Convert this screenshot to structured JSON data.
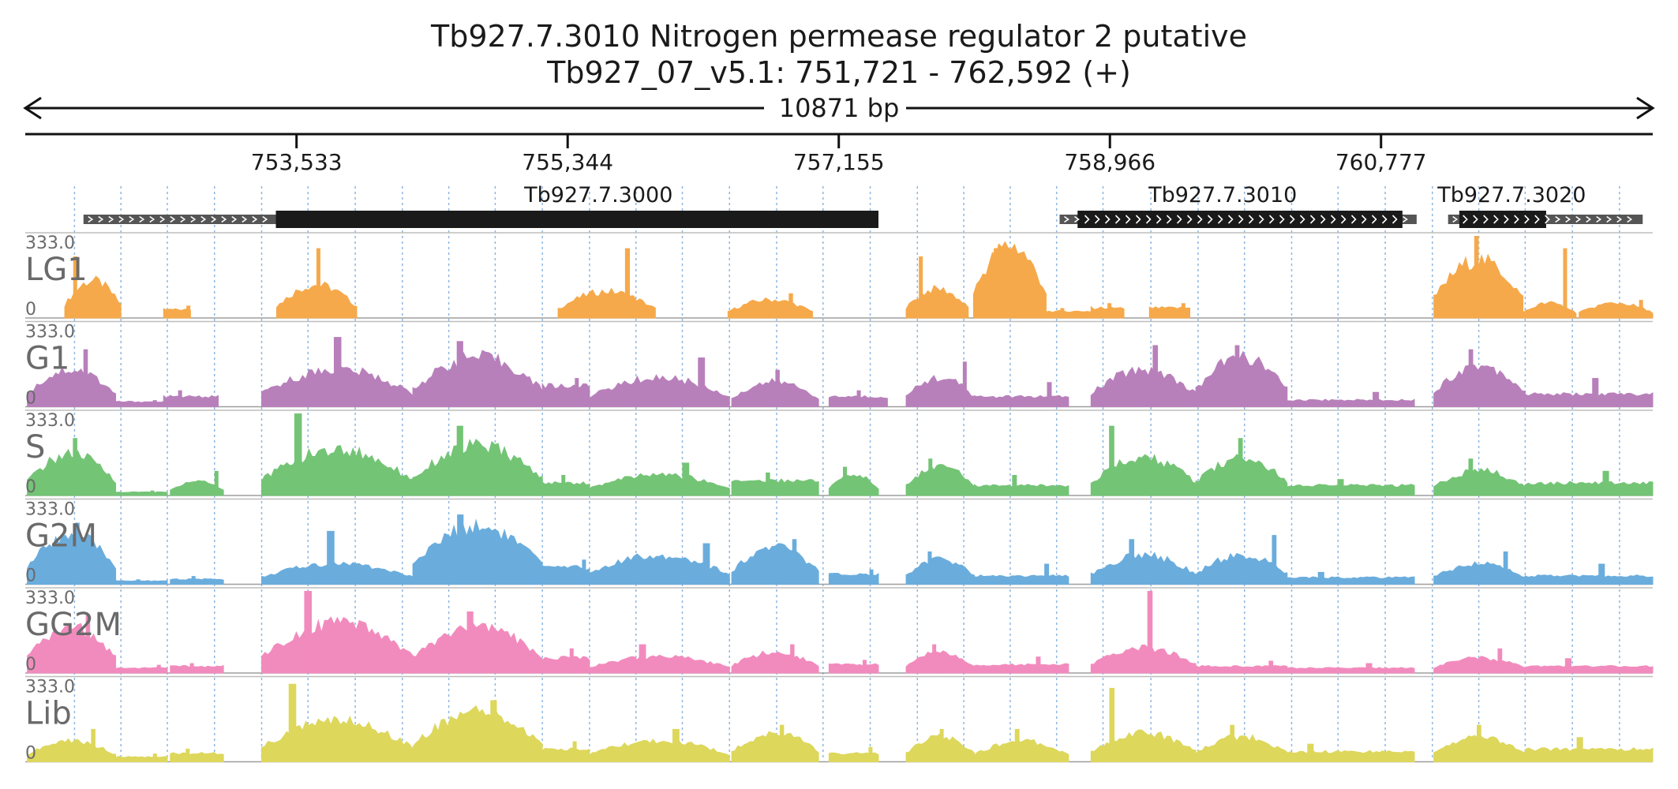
{
  "title": {
    "line1": "Tb927.7.3010  Nitrogen permease regulator 2  putative",
    "line2": "Tb927_07_v5.1: 751,721 - 762,592 (+)"
  },
  "span_label": "10871 bp",
  "chart_data": {
    "type": "area",
    "x_range": [
      751721,
      762592
    ],
    "x_ticks": [
      {
        "pos": 753533,
        "label": "753,533"
      },
      {
        "pos": 755344,
        "label": "755,344"
      },
      {
        "pos": 757155,
        "label": "757,155"
      },
      {
        "pos": 758966,
        "label": "758,966"
      },
      {
        "pos": 760777,
        "label": "760,777"
      }
    ],
    "grid_positions": [
      752050,
      752360,
      752670,
      752985,
      753300,
      753610,
      753925,
      754240,
      754550,
      754860,
      755175,
      755490,
      755800,
      756110,
      756425,
      756740,
      757050,
      757365,
      757680,
      757990,
      758300,
      758610,
      758920,
      759240,
      759555,
      759865,
      760180,
      760490,
      760805,
      761120,
      761430,
      761740,
      762055,
      762370
    ],
    "genes": [
      {
        "name": "Tb927.7.3000",
        "utr": [
          752110,
          753395
        ],
        "cds": [
          753395,
          757420
        ],
        "label_pos": 755550
      },
      {
        "name": "Tb927.7.3010",
        "utr": [
          758630,
          761015
        ],
        "cds": [
          758750,
          760920
        ],
        "label_pos": 759720
      },
      {
        "name": "Tb927.7.3020",
        "utr": [
          761225,
          762525
        ],
        "cds": [
          761300,
          761880
        ],
        "label_pos": 761650
      }
    ],
    "y_range": [
      0,
      333.0
    ],
    "tracks": [
      {
        "name": "LG1",
        "max_label": "333.0",
        "min_label": "0",
        "color": "#f6a94a",
        "regions": [
          [
            751985,
            752360,
            "hump",
            0.45,
            0.75
          ],
          [
            752645,
            752825,
            "flat",
            0.1,
            0.15
          ],
          [
            753400,
            753935,
            "hump",
            0.4,
            0.85
          ],
          [
            755280,
            755930,
            "hump",
            0.32,
            0.85
          ],
          [
            756415,
            756980,
            "hump",
            0.22,
            0.3
          ],
          [
            757605,
            758020,
            "hump",
            0.35,
            0.75
          ],
          [
            758055,
            758540,
            "hump",
            0.88,
            0.85
          ],
          [
            758540,
            758920,
            "flat",
            0.08,
            0.12
          ],
          [
            758840,
            759060,
            "flat",
            0.12,
            0.18
          ],
          [
            759230,
            759500,
            "flat",
            0.12,
            0.18
          ],
          [
            761130,
            761725,
            "hump",
            0.7,
            1.0
          ],
          [
            761725,
            762080,
            "hump",
            0.18,
            0.85
          ],
          [
            762100,
            762592,
            "hump",
            0.18,
            0.22
          ]
        ]
      },
      {
        "name": "G1",
        "max_label": "333.0",
        "min_label": "0",
        "color": "#b880bb",
        "regions": [
          [
            751735,
            752325,
            "hump",
            0.45,
            0.7
          ],
          [
            752325,
            752670,
            "flat",
            0.06,
            0.08
          ],
          [
            752645,
            753010,
            "flat",
            0.12,
            0.2
          ],
          [
            753300,
            754310,
            "hump",
            0.45,
            0.85
          ],
          [
            754310,
            755175,
            "hump",
            0.6,
            0.8
          ],
          [
            755175,
            755490,
            "flat",
            0.25,
            0.35
          ],
          [
            755490,
            756425,
            "hump",
            0.35,
            0.6
          ],
          [
            756440,
            757020,
            "hump",
            0.3,
            0.45
          ],
          [
            757090,
            757480,
            "flat",
            0.12,
            0.2
          ],
          [
            757605,
            758060,
            "hump",
            0.35,
            0.55
          ],
          [
            758060,
            758690,
            "flat",
            0.12,
            0.3
          ],
          [
            758840,
            759540,
            "hump",
            0.45,
            0.75
          ],
          [
            759540,
            760150,
            "hump",
            0.6,
            0.75
          ],
          [
            760150,
            761000,
            "flat",
            0.08,
            0.18
          ],
          [
            761130,
            761740,
            "hump",
            0.5,
            0.7
          ],
          [
            761740,
            762592,
            "flat",
            0.15,
            0.35
          ]
        ]
      },
      {
        "name": "S",
        "max_label": "333.0",
        "min_label": "0",
        "color": "#74c476",
        "regions": [
          [
            751735,
            752325,
            "hump",
            0.5,
            0.7
          ],
          [
            752325,
            752670,
            "flat",
            0.04,
            0.06
          ],
          [
            752690,
            753045,
            "hump",
            0.18,
            0.3
          ],
          [
            753300,
            754310,
            "hump",
            0.55,
            1.0
          ],
          [
            754310,
            755175,
            "hump",
            0.6,
            0.85
          ],
          [
            755175,
            755490,
            "flat",
            0.15,
            0.25
          ],
          [
            755490,
            756425,
            "hump",
            0.25,
            0.4
          ],
          [
            756440,
            757020,
            "flat",
            0.18,
            0.28
          ],
          [
            757090,
            757420,
            "hump",
            0.25,
            0.35
          ],
          [
            757605,
            758060,
            "hump",
            0.35,
            0.45
          ],
          [
            758060,
            758690,
            "flat",
            0.12,
            0.25
          ],
          [
            758840,
            759540,
            "hump",
            0.45,
            0.85
          ],
          [
            759540,
            760150,
            "hump",
            0.45,
            0.7
          ],
          [
            760150,
            761000,
            "flat",
            0.12,
            0.2
          ],
          [
            761130,
            761740,
            "hump",
            0.3,
            0.45
          ],
          [
            761740,
            762592,
            "flat",
            0.15,
            0.3
          ]
        ]
      },
      {
        "name": "G2M",
        "max_label": "333.0",
        "min_label": "0",
        "color": "#6aaddd",
        "regions": [
          [
            751735,
            752325,
            "hump",
            0.6,
            0.75
          ],
          [
            752325,
            752670,
            "flat",
            0.04,
            0.06
          ],
          [
            752690,
            753045,
            "flat",
            0.06,
            0.1
          ],
          [
            753300,
            754310,
            "hump",
            0.25,
            0.65
          ],
          [
            754310,
            755175,
            "hump",
            0.7,
            0.85
          ],
          [
            755175,
            755490,
            "flat",
            0.2,
            0.3
          ],
          [
            755490,
            756425,
            "hump",
            0.35,
            0.5
          ],
          [
            756440,
            757020,
            "hump",
            0.45,
            0.55
          ],
          [
            757090,
            757420,
            "flat",
            0.12,
            0.18
          ],
          [
            757605,
            758060,
            "hump",
            0.3,
            0.4
          ],
          [
            758060,
            758690,
            "flat",
            0.1,
            0.25
          ],
          [
            758840,
            759540,
            "hump",
            0.35,
            0.55
          ],
          [
            759540,
            760150,
            "hump",
            0.35,
            0.6
          ],
          [
            760150,
            761000,
            "flat",
            0.08,
            0.15
          ],
          [
            761130,
            761740,
            "hump",
            0.25,
            0.4
          ],
          [
            761740,
            762592,
            "flat",
            0.1,
            0.25
          ]
        ]
      },
      {
        "name": "GG2M",
        "max_label": "333.0",
        "min_label": "0",
        "color": "#f28bbd",
        "regions": [
          [
            751735,
            752325,
            "hump",
            0.55,
            0.7
          ],
          [
            752325,
            752670,
            "flat",
            0.06,
            0.1
          ],
          [
            752690,
            753045,
            "flat",
            0.08,
            0.12
          ],
          [
            753300,
            754310,
            "hump",
            0.6,
            1.0
          ],
          [
            754310,
            755175,
            "hump",
            0.55,
            0.75
          ],
          [
            755175,
            755490,
            "flat",
            0.18,
            0.3
          ],
          [
            755490,
            756425,
            "hump",
            0.2,
            0.35
          ],
          [
            756440,
            757020,
            "hump",
            0.25,
            0.35
          ],
          [
            757090,
            757420,
            "flat",
            0.1,
            0.16
          ],
          [
            757605,
            758060,
            "hump",
            0.25,
            0.35
          ],
          [
            758060,
            758690,
            "flat",
            0.1,
            0.2
          ],
          [
            758840,
            759540,
            "hump",
            0.3,
            1.0
          ],
          [
            759540,
            760150,
            "flat",
            0.08,
            0.15
          ],
          [
            760150,
            761000,
            "flat",
            0.06,
            0.12
          ],
          [
            761130,
            761740,
            "hump",
            0.18,
            0.3
          ],
          [
            761740,
            762592,
            "flat",
            0.08,
            0.18
          ]
        ]
      },
      {
        "name": "Lib",
        "max_label": "333.0",
        "min_label": "0",
        "color": "#ddd75c",
        "regions": [
          [
            751735,
            752325,
            "hump",
            0.25,
            0.4
          ],
          [
            752325,
            752670,
            "flat",
            0.06,
            0.1
          ],
          [
            752690,
            753045,
            "flat",
            0.1,
            0.16
          ],
          [
            753300,
            754310,
            "hump",
            0.5,
            0.95
          ],
          [
            754310,
            755175,
            "hump",
            0.6,
            0.75
          ],
          [
            755175,
            755490,
            "flat",
            0.15,
            0.25
          ],
          [
            755490,
            756425,
            "hump",
            0.25,
            0.4
          ],
          [
            756440,
            757020,
            "hump",
            0.35,
            0.45
          ],
          [
            757090,
            757420,
            "flat",
            0.1,
            0.18
          ],
          [
            757605,
            758060,
            "hump",
            0.3,
            0.4
          ],
          [
            758060,
            758690,
            "hump",
            0.25,
            0.4
          ],
          [
            758840,
            759540,
            "hump",
            0.35,
            0.9
          ],
          [
            759540,
            760150,
            "hump",
            0.3,
            0.45
          ],
          [
            760150,
            761000,
            "flat",
            0.12,
            0.22
          ],
          [
            761130,
            761740,
            "hump",
            0.3,
            0.45
          ],
          [
            761740,
            762592,
            "flat",
            0.15,
            0.3
          ]
        ]
      }
    ]
  }
}
